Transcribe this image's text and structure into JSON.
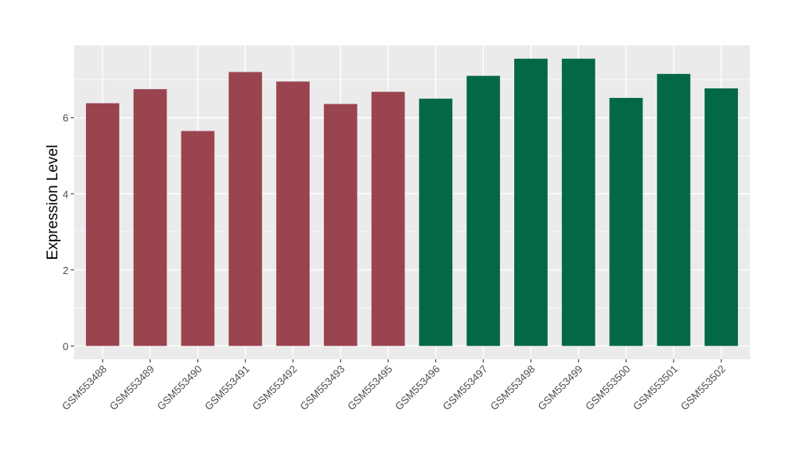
{
  "chart_data": {
    "type": "bar",
    "title": "",
    "xlabel": "",
    "ylabel": "Expression Level",
    "ylim": [
      -0.35,
      7.9
    ],
    "yticks": [
      0,
      2,
      4,
      6
    ],
    "grid": true,
    "categories": [
      "GSM553488",
      "GSM553489",
      "GSM553490",
      "GSM553491",
      "GSM553492",
      "GSM553493",
      "GSM553495",
      "GSM553496",
      "GSM553497",
      "GSM553498",
      "GSM553499",
      "GSM553500",
      "GSM553501",
      "GSM553502"
    ],
    "values": [
      6.38,
      6.75,
      5.65,
      7.2,
      6.95,
      6.36,
      6.68,
      6.5,
      7.1,
      7.55,
      7.55,
      6.52,
      7.15,
      6.77
    ],
    "bar_colors": [
      "#9a4450",
      "#9a4450",
      "#9a4450",
      "#9a4450",
      "#9a4450",
      "#9a4450",
      "#9a4450",
      "#026845",
      "#026845",
      "#026845",
      "#026845",
      "#026845",
      "#026845",
      "#026845"
    ],
    "panel_background": "#ebebeb",
    "grid_color": "#ffffff"
  }
}
